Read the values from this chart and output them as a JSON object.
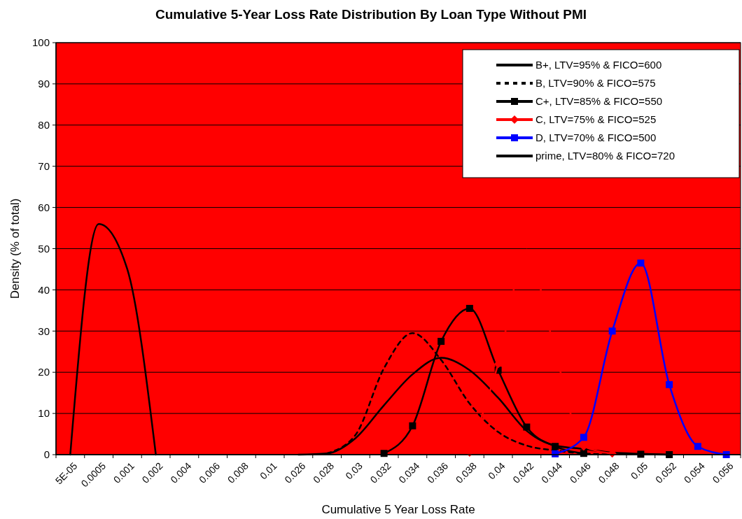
{
  "chart_data": {
    "type": "line",
    "title": "Cumulative 5-Year Loss Rate Distribution By Loan Type Without PMI",
    "xlabel": "Cumulative 5 Year Loss Rate",
    "ylabel": "Density (% of total)",
    "categories": [
      "5E-05",
      "0.0005",
      "0.001",
      "0.002",
      "0.004",
      "0.006",
      "0.008",
      "0.01",
      "0.026",
      "0.028",
      "0.03",
      "0.032",
      "0.034",
      "0.036",
      "0.038",
      "0.04",
      "0.042",
      "0.044",
      "0.046",
      "0.048",
      "0.05",
      "0.052",
      "0.054",
      "0.056"
    ],
    "ylim": [
      0,
      100
    ],
    "yticks": [
      0,
      10,
      20,
      30,
      40,
      50,
      60,
      70,
      80,
      90,
      100
    ],
    "grid": "y",
    "legend": "top right",
    "series": [
      {
        "name": "B+, LTV=95%  & FICO=600",
        "color": "#000000",
        "line_style": "solid",
        "marker": "none",
        "values": [
          null,
          null,
          null,
          null,
          null,
          null,
          null,
          null,
          0,
          0.3,
          4,
          12,
          19.5,
          23.5,
          20.5,
          13.8,
          5.8,
          2.2,
          1.4,
          0.5,
          0.2,
          0,
          null,
          null
        ]
      },
      {
        "name": "B, LTV=90%  & FICO=575",
        "color": "#000000",
        "line_style": "dashed",
        "marker": "none",
        "values": [
          null,
          null,
          null,
          null,
          null,
          null,
          null,
          null,
          null,
          0.3,
          4.8,
          21,
          29.5,
          23,
          12.4,
          5.5,
          2.2,
          1,
          0.3,
          0,
          null,
          null,
          null,
          null
        ]
      },
      {
        "name": "C+, LTV=85%  & FICO=550",
        "color": "#000000",
        "line_style": "solid",
        "marker": "square",
        "values": [
          null,
          null,
          null,
          null,
          null,
          null,
          null,
          null,
          null,
          null,
          null,
          0.3,
          7,
          27.5,
          35.5,
          20.5,
          6.7,
          2,
          0.3,
          null,
          0.1,
          0,
          null,
          null
        ]
      },
      {
        "name": "C, LTV=75%  & FICO=525",
        "color": "#ff0000",
        "line_style": "solid",
        "marker": "diamond",
        "values": [
          null,
          null,
          null,
          null,
          null,
          null,
          null,
          null,
          null,
          null,
          null,
          null,
          null,
          null,
          0.5,
          22,
          49,
          25,
          2,
          0.3,
          null,
          null,
          null,
          null
        ]
      },
      {
        "name": "D, LTV=70%  & FICO=500",
        "color": "#0000ff",
        "line_style": "solid",
        "marker": "square",
        "values": [
          null,
          null,
          null,
          null,
          null,
          null,
          null,
          null,
          null,
          null,
          null,
          null,
          null,
          null,
          null,
          null,
          null,
          0.2,
          4.2,
          30,
          46.5,
          17,
          2,
          0
        ]
      },
      {
        "name": "prime, LTV=80%  & FICO=720",
        "color": "#000000",
        "line_style": "solid",
        "marker": "none",
        "values": [
          0,
          56,
          45,
          0,
          null,
          null,
          null,
          null,
          null,
          null,
          null,
          null,
          null,
          null,
          null,
          null,
          null,
          null,
          null,
          null,
          null,
          null,
          null,
          null
        ]
      }
    ]
  }
}
